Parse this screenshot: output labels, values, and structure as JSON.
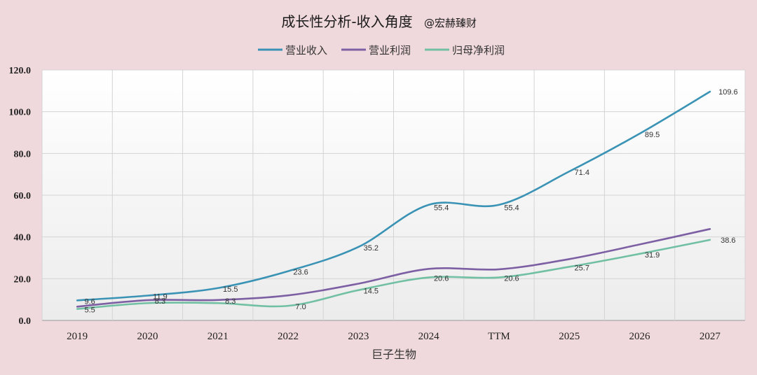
{
  "chart_data": {
    "type": "line",
    "title": "成长性分析-收入角度",
    "subtitle": "@宏赫臻财",
    "xlabel": "巨子生物",
    "ylabel": "",
    "ylim": [
      0,
      120
    ],
    "yticks": [
      "0.0",
      "20.0",
      "40.0",
      "60.0",
      "80.0",
      "100.0",
      "120.0"
    ],
    "ytick_values": [
      0,
      20,
      40,
      60,
      80,
      100,
      120
    ],
    "categories": [
      "2019",
      "2020",
      "2021",
      "2022",
      "2023",
      "2024",
      "TTM",
      "2025",
      "2026",
      "2027"
    ],
    "grid": true,
    "legend_position": "top-center",
    "series": [
      {
        "name": "营业收入",
        "color": "#3a93b5",
        "values": [
          9.6,
          11.9,
          15.5,
          23.6,
          35.2,
          55.4,
          55.4,
          71.4,
          89.5,
          109.6
        ],
        "labels": [
          "9.6",
          "11.9",
          "15.5",
          "23.6",
          "35.2",
          "55.4",
          "55.4",
          "71.4",
          "89.5",
          "109.6"
        ]
      },
      {
        "name": "营业利润",
        "color": "#7d5fa3",
        "values": [
          6.6,
          9.7,
          9.8,
          12.0,
          17.6,
          24.7,
          24.5,
          29.4,
          36.4,
          43.8
        ],
        "labels": []
      },
      {
        "name": "归母净利润",
        "color": "#72c0a4",
        "values": [
          5.5,
          8.3,
          8.3,
          7.0,
          14.5,
          20.6,
          20.6,
          25.7,
          31.9,
          38.6
        ],
        "labels": [
          "5.5",
          "8.3",
          "8.3",
          "7.0",
          "14.5",
          "20.6",
          "20.6",
          "25.7",
          "31.9",
          "38.6"
        ]
      }
    ]
  }
}
